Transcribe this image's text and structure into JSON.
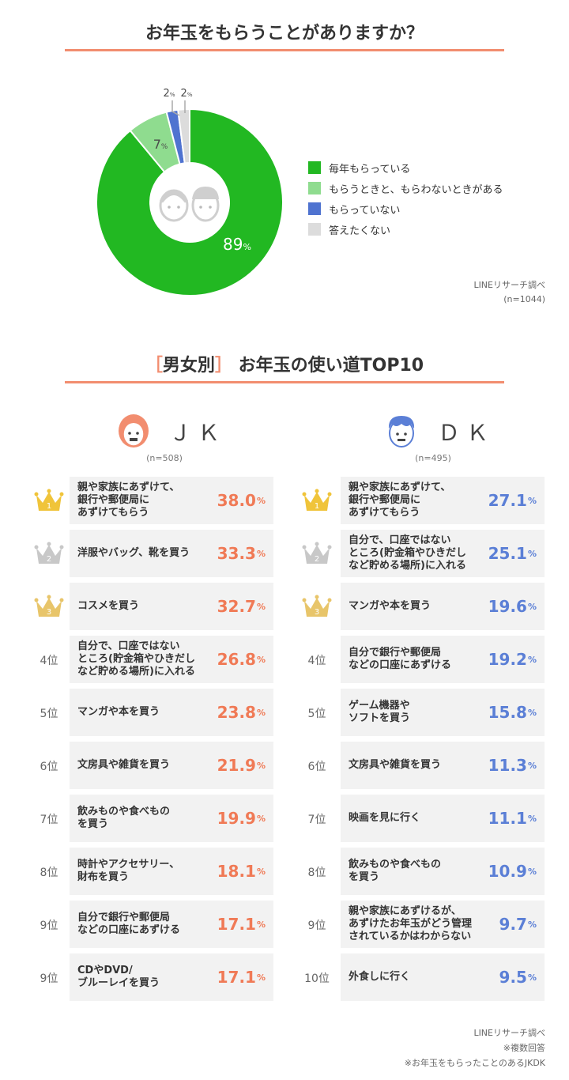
{
  "title1": "お年玉をもらうことがありますか？",
  "title2_bracket_open": "［",
  "title2_group": "男女別",
  "title2_bracket_close": "］",
  "title2_rest": "お年玉の使い道TOP10",
  "pie_source": "LINEリサーチ調べ",
  "pie_n": "(n=1044)",
  "chart_data": [
    {
      "type": "pie",
      "title": "お年玉をもらうことがありますか？",
      "categories": [
        "毎年もらっている",
        "もらうときと、もらわないときがある",
        "もらっていない",
        "答えたくない"
      ],
      "values": [
        89,
        7,
        2,
        2
      ],
      "unit": "%",
      "colors": [
        "#22b822",
        "#8fdc8f",
        "#4f73d0",
        "#dcdcdc"
      ],
      "legend": "right"
    },
    {
      "type": "table",
      "group": "ＪＫ",
      "n": "(n=508)",
      "ranks": [
        "1",
        "2",
        "3",
        "4位",
        "5位",
        "6位",
        "7位",
        "8位",
        "9位",
        "9位"
      ],
      "categories": [
        "親や家族にあずけて、\n銀行や郵便局に\nあずけてもらう",
        "洋服やバッグ、靴を買う",
        "コスメを買う",
        "自分で、口座ではない\nところ(貯金箱やひきだし\nなど貯める場所)に入れる",
        "マンガや本を買う",
        "文房具や雑貨を買う",
        "飲みものや食べもの\nを買う",
        "時計やアクセサリー、\n財布を買う",
        "自分で銀行や郵便局\nなどの口座にあずける",
        "CDやDVD/\nブルーレイを買う"
      ],
      "values": [
        38.0,
        33.3,
        32.7,
        26.8,
        23.8,
        21.9,
        19.9,
        18.1,
        17.1,
        17.1
      ],
      "labels": [
        "38.0",
        "33.3",
        "32.7",
        "26.8",
        "23.8",
        "21.9",
        "19.9",
        "18.1",
        "17.1",
        "17.1"
      ],
      "unit": "%"
    },
    {
      "type": "table",
      "group": "ＤＫ",
      "n": "(n=495)",
      "ranks": [
        "1",
        "2",
        "3",
        "4位",
        "5位",
        "6位",
        "7位",
        "8位",
        "9位",
        "10位"
      ],
      "categories": [
        "親や家族にあずけて、\n銀行や郵便局に\nあずけてもらう",
        "自分で、口座ではない\nところ(貯金箱やひきだし\nなど貯める場所)に入れる",
        "マンガや本を買う",
        "自分で銀行や郵便局\nなどの口座にあずける",
        "ゲーム機器や\nソフトを買う",
        "文房具や雑貨を買う",
        "映画を見に行く",
        "飲みものや食べもの\nを買う",
        "親や家族にあずけるが、\nあずけたお年玉がどう管理\nされているかはわからない",
        "外食しに行く"
      ],
      "values": [
        27.1,
        25.1,
        19.6,
        19.2,
        15.8,
        11.3,
        11.1,
        10.9,
        9.7,
        9.5
      ],
      "labels": [
        "27.1",
        "25.1",
        "19.6",
        "19.2",
        "15.8",
        "11.3",
        "11.1",
        "10.9",
        "9.7",
        "9.5"
      ],
      "unit": "%"
    }
  ],
  "footnotes": [
    "LINEリサーチ調べ",
    "※複数回答",
    "※お年玉をもらったことのあるJKDK"
  ],
  "colors": {
    "accent": "#f28d6f",
    "jk_value": "#f07a56",
    "dk_value": "#5b7fd6",
    "row_bg": "#f2f2f2",
    "gold": "#f0c43a",
    "silver": "#c8c8c8",
    "bronze": "#e8c56a"
  }
}
